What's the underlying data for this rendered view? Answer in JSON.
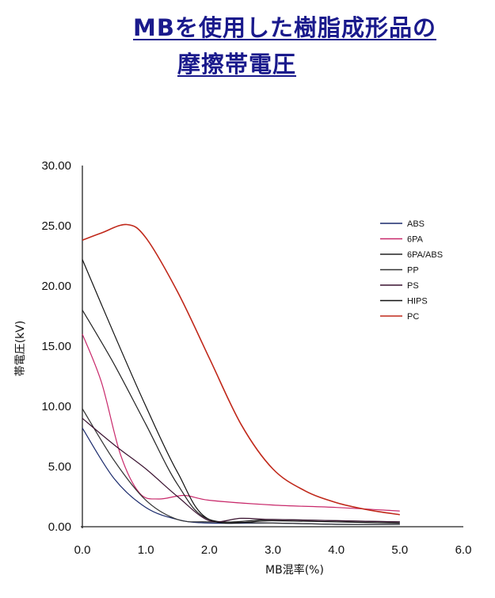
{
  "title_line1": "MBを使用した樹脂成形品の",
  "title_line2": "摩擦帯電圧",
  "chart_data": {
    "type": "line",
    "xlabel": "MB混率(%)",
    "ylabel": "帯電圧(kV)",
    "xlim": [
      0,
      6
    ],
    "ylim": [
      0,
      30
    ],
    "x_ticks": [
      "0.0",
      "1.0",
      "2.0",
      "3.0",
      "4.0",
      "5.0",
      "6.0"
    ],
    "y_ticks": [
      "0.00",
      "5.00",
      "10.00",
      "15.00",
      "20.00",
      "25.00",
      "30.00"
    ],
    "grid": false,
    "legend_position": "right",
    "series": [
      {
        "name": "ABS",
        "color": "#1a2a6c",
        "x": [
          0,
          0.5,
          1.0,
          1.5,
          2.0,
          3.0,
          4.0,
          5.0
        ],
        "y": [
          8.2,
          4.0,
          1.6,
          0.6,
          0.3,
          0.3,
          0.2,
          0.2
        ]
      },
      {
        "name": "6PA",
        "color": "#c8286a",
        "x": [
          0,
          0.3,
          0.6,
          0.9,
          1.2,
          1.6,
          2.0,
          3.0,
          4.0,
          5.0
        ],
        "y": [
          16.0,
          12.0,
          6.0,
          2.8,
          2.3,
          2.6,
          2.2,
          1.8,
          1.6,
          1.3
        ]
      },
      {
        "name": "6PA/ABS",
        "color": "#222222",
        "x": [
          0,
          0.5,
          1.0,
          1.5,
          2.0,
          3.0,
          4.0,
          5.0
        ],
        "y": [
          18.0,
          13.5,
          8.5,
          3.5,
          0.6,
          0.6,
          0.5,
          0.4
        ]
      },
      {
        "name": "PP",
        "color": "#333333",
        "x": [
          0,
          0.5,
          1.0,
          1.5,
          2.0,
          3.0,
          4.0,
          5.0
        ],
        "y": [
          9.8,
          5.5,
          2.2,
          0.6,
          0.4,
          0.3,
          0.2,
          0.2
        ]
      },
      {
        "name": "PS",
        "color": "#3a1230",
        "x": [
          0,
          0.5,
          1.0,
          1.5,
          2.0,
          2.5,
          3.0,
          4.0,
          5.0
        ],
        "y": [
          9.0,
          6.8,
          4.8,
          2.5,
          0.5,
          0.7,
          0.6,
          0.5,
          0.4
        ]
      },
      {
        "name": "HIPS",
        "color": "#111111",
        "x": [
          0,
          0.5,
          1.0,
          1.5,
          2.0,
          3.0,
          4.0,
          5.0
        ],
        "y": [
          22.2,
          16.0,
          10.0,
          4.5,
          0.6,
          0.5,
          0.4,
          0.3
        ]
      },
      {
        "name": "PC",
        "color": "#c0281a",
        "x": [
          0,
          0.3,
          0.7,
          1.0,
          1.5,
          2.0,
          2.5,
          3.0,
          3.5,
          4.0,
          4.5,
          5.0
        ],
        "y": [
          23.8,
          24.4,
          25.1,
          24.0,
          19.5,
          14.0,
          8.5,
          4.8,
          3.0,
          2.0,
          1.4,
          1.0
        ]
      }
    ]
  }
}
